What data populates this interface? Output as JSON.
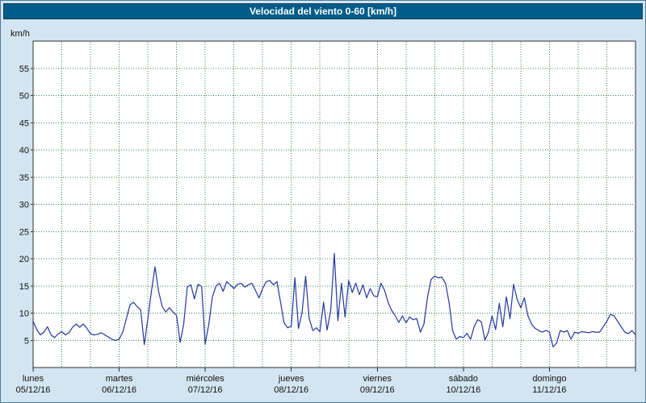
{
  "window": {
    "title": "Velocidad del viento 0-60 [km/h]"
  },
  "colors": {
    "background": "#d3e5f0",
    "window_border": "#4a7da5",
    "titlebar_bg": "#005c8a",
    "titlebar_text": "#ffffff",
    "plot_bg": "#ffffff",
    "grid": "#3c8a50",
    "frame": "#303030",
    "line": "#22379f",
    "label_text": "#111111"
  },
  "chart_data": {
    "type": "line",
    "title": "Velocidad del viento 0-60 [km/h]",
    "ylabel": "km/h",
    "ylim": [
      0,
      60
    ],
    "xlim_hours": [
      0,
      168
    ],
    "y_ticks": [
      5,
      10,
      15,
      20,
      25,
      30,
      35,
      40,
      45,
      50,
      55
    ],
    "grid": {
      "style": "dotted",
      "h_step": 5,
      "v_step_hours": 8
    },
    "legend": "none",
    "days": [
      {
        "name": "lunes",
        "date": "05/12/16"
      },
      {
        "name": "martes",
        "date": "06/12/16"
      },
      {
        "name": "miércoles",
        "date": "07/12/16"
      },
      {
        "name": "jueves",
        "date": "08/12/16"
      },
      {
        "name": "viernes",
        "date": "09/12/16"
      },
      {
        "name": "sábado",
        "date": "10/12/16"
      },
      {
        "name": "domingo",
        "date": "11/12/16"
      }
    ],
    "series": [
      {
        "name": "velocidad_viento_kmh",
        "color": "#22379f",
        "x_step_hours": 1,
        "values": [
          8.5,
          7,
          6,
          6.5,
          7.5,
          6,
          5.5,
          6.2,
          6.6,
          6,
          6.4,
          7.4,
          8,
          7.4,
          8,
          7.2,
          6.2,
          6,
          6.1,
          6.4,
          6,
          5.6,
          5.2,
          5,
          5.2,
          6.5,
          9,
          11.5,
          12,
          11.2,
          10.6,
          4.2,
          9,
          14,
          18.5,
          14,
          11.2,
          10.2,
          11,
          10.2,
          9.6,
          4.6,
          8,
          14.8,
          15.2,
          12.6,
          15.3,
          14.9,
          4.3,
          8,
          13,
          15,
          15.5,
          14,
          15.8,
          15.2,
          14.5,
          15.3,
          15.5,
          14.8,
          15.2,
          15.5,
          14.2,
          12.8,
          14.5,
          15.8,
          16,
          15.2,
          15.8,
          12,
          8.2,
          7.3,
          7.6,
          16.5,
          7.2,
          10,
          16.8,
          9,
          6.8,
          7.3,
          6.6,
          12,
          6.9,
          10.5,
          21,
          8.6,
          15.5,
          9.3,
          16,
          13.8,
          15.5,
          13.4,
          15.2,
          12.8,
          14.5,
          13.2,
          13,
          15.5,
          14.2,
          12,
          10.5,
          9.5,
          8.3,
          9.5,
          8.2,
          9.3,
          8.8,
          9,
          6.5,
          8,
          13,
          16.2,
          16.8,
          16.5,
          16.6,
          15.5,
          12,
          6.8,
          5.2,
          5.7,
          5.5,
          6.3,
          5.2,
          7.5,
          8.8,
          8.4,
          5,
          6.5,
          9.5,
          7,
          11.8,
          7.5,
          13,
          9,
          15.3,
          12.5,
          11,
          12.8,
          9.5,
          8,
          7.2,
          6.8,
          6.5,
          6.8,
          6.5,
          3.8,
          4.5,
          6.8,
          6.5,
          6.8,
          5.2,
          6.5,
          6.3,
          6.6,
          6.5,
          6.4,
          6.6,
          6.5,
          6.5,
          7.5,
          8.5,
          9.8,
          9.5,
          8.5,
          7.5,
          6.5,
          6.2,
          6.8,
          6
        ]
      }
    ]
  }
}
